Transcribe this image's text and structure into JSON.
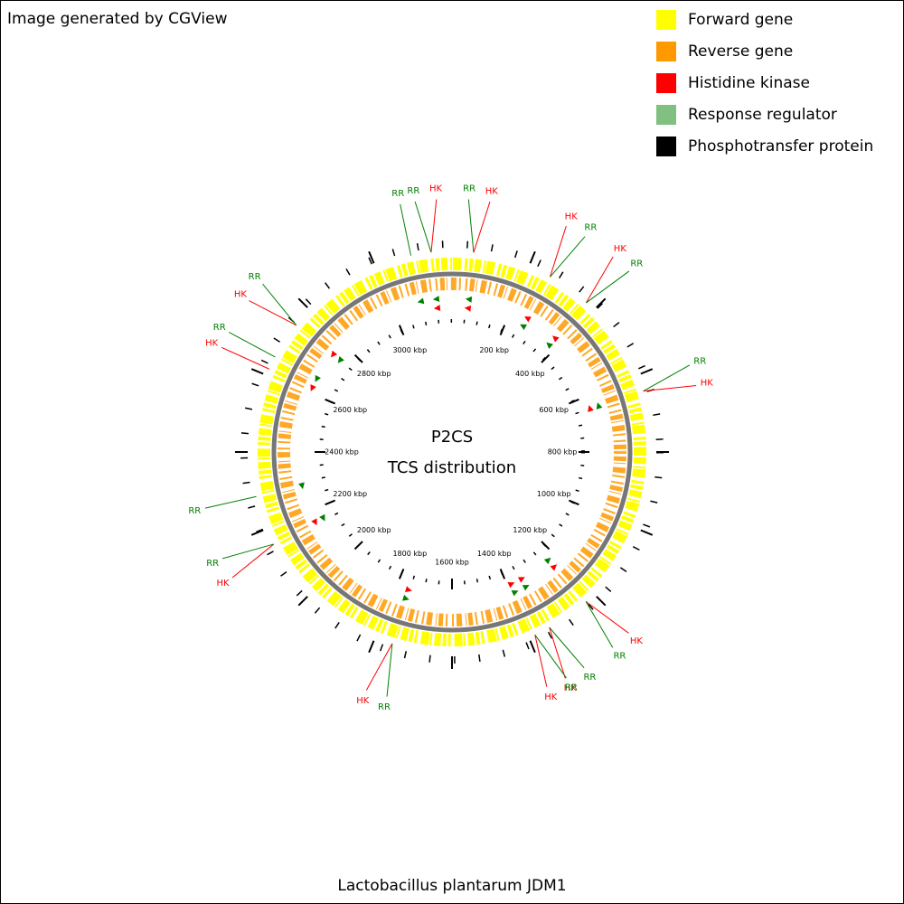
{
  "header": {
    "text": "Image generated by CGView"
  },
  "legend": [
    {
      "label": "Forward gene",
      "color": "#ffff00"
    },
    {
      "label": "Reverse gene",
      "color": "#ff9900"
    },
    {
      "label": "Histidine kinase",
      "color": "#ff0000"
    },
    {
      "label": "Response regulator",
      "color": "#80c080"
    },
    {
      "label": "Phosphotransfer protein",
      "color": "#000000"
    }
  ],
  "center": {
    "line1": "P2CS",
    "line2": "TCS distribution"
  },
  "footer": {
    "text": "Lactobacillus plantarum JDM1"
  },
  "genome_range": [
    0,
    3200
  ],
  "ticks": [
    {
      "value": 200,
      "label": "200 kbp"
    },
    {
      "value": 400,
      "label": "400 kbp"
    },
    {
      "value": 600,
      "label": "600 kbp"
    },
    {
      "value": 800,
      "label": "800 kbp"
    },
    {
      "value": 1000,
      "label": "1000 kbp"
    },
    {
      "value": 1200,
      "label": "1200 kbp"
    },
    {
      "value": 1400,
      "label": "1400 kbp"
    },
    {
      "value": 1600,
      "label": "1600 kbp"
    },
    {
      "value": 1800,
      "label": "1800 kbp"
    },
    {
      "value": 2000,
      "label": "2000 kbp"
    },
    {
      "value": 2200,
      "label": "2200 kbp"
    },
    {
      "value": 2400,
      "label": "2400 kbp"
    },
    {
      "value": 2600,
      "label": "2600 kbp"
    },
    {
      "value": 2800,
      "label": "2800 kbp"
    },
    {
      "value": 3000,
      "label": "3000 kbp"
    }
  ],
  "features": [
    {
      "label": "RR",
      "position": 55,
      "color": "#008000"
    },
    {
      "label": "HK",
      "position": 55,
      "color": "#ff0000"
    },
    {
      "label": "HK",
      "position": 260,
      "color": "#ff0000"
    },
    {
      "label": "RR",
      "position": 260,
      "color": "#008000"
    },
    {
      "label": "HK",
      "position": 373,
      "color": "#ff0000"
    },
    {
      "label": "RR",
      "position": 373,
      "color": "#008000"
    },
    {
      "label": "RR",
      "position": 643,
      "color": "#008000"
    },
    {
      "label": "HK",
      "position": 643,
      "color": "#ff0000"
    },
    {
      "label": "HK",
      "position": 1228,
      "color": "#ff0000"
    },
    {
      "label": "RR",
      "position": 1228,
      "color": "#008000"
    },
    {
      "label": "RR",
      "position": 1342,
      "color": "#008000"
    },
    {
      "label": "HK",
      "position": 1342,
      "color": "#ff0000"
    },
    {
      "label": "RR",
      "position": 1383,
      "color": "#008000"
    },
    {
      "label": "HK",
      "position": 1383,
      "color": "#ff0000"
    },
    {
      "label": "RR",
      "position": 1754,
      "color": "#008000"
    },
    {
      "label": "HK",
      "position": 1754,
      "color": "#ff0000"
    },
    {
      "label": "HK",
      "position": 2157,
      "color": "#ff0000"
    },
    {
      "label": "RR",
      "position": 2157,
      "color": "#008000"
    },
    {
      "label": "RR",
      "position": 2286,
      "color": "#008000"
    },
    {
      "label": "HK",
      "position": 2617,
      "color": "#ff0000"
    },
    {
      "label": "RR",
      "position": 2651,
      "color": "#008000"
    },
    {
      "label": "HK",
      "position": 2748,
      "color": "#ff0000"
    },
    {
      "label": "RR",
      "position": 2748,
      "color": "#008000"
    },
    {
      "label": "RR",
      "position": 3095,
      "color": "#008000"
    },
    {
      "label": "RR",
      "position": 3147,
      "color": "#008000"
    },
    {
      "label": "HK",
      "position": 3147,
      "color": "#ff0000"
    }
  ]
}
